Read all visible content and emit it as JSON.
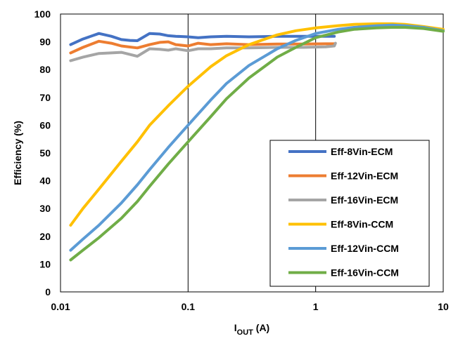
{
  "chart_data": {
    "type": "line",
    "xlabel": "I",
    "xlabel_sub": "OUT",
    "xlabel_suffix": " (A)",
    "ylabel": "Efficiency (%)",
    "xscale": "log",
    "xlim": [
      0.01,
      10
    ],
    "ylim": [
      0,
      100
    ],
    "x_ticks": [
      0.01,
      0.1,
      1,
      10
    ],
    "x_tick_labels": [
      "0.01",
      "0.1",
      "1",
      "10"
    ],
    "y_ticks": [
      0,
      10,
      20,
      30,
      40,
      50,
      60,
      70,
      80,
      90,
      100
    ],
    "y_tick_labels": [
      "0",
      "10",
      "20",
      "30",
      "40",
      "50",
      "60",
      "70",
      "80",
      "90",
      "100"
    ],
    "grid": "vertical major lines",
    "legend_position": "bottom-right",
    "series": [
      {
        "name": "Eff-8Vin-ECM",
        "color": "#4472C4",
        "points": [
          [
            0.012,
            89
          ],
          [
            0.015,
            91
          ],
          [
            0.02,
            93
          ],
          [
            0.025,
            92
          ],
          [
            0.03,
            90.8
          ],
          [
            0.035,
            90.5
          ],
          [
            0.04,
            90.4
          ],
          [
            0.05,
            93
          ],
          [
            0.06,
            92.8
          ],
          [
            0.07,
            92.2
          ],
          [
            0.08,
            92
          ],
          [
            0.1,
            91.8
          ],
          [
            0.12,
            91.5
          ],
          [
            0.15,
            91.8
          ],
          [
            0.2,
            92
          ],
          [
            0.3,
            91.8
          ],
          [
            0.5,
            92
          ],
          [
            0.8,
            92
          ],
          [
            1.2,
            92
          ],
          [
            1.4,
            92
          ]
        ]
      },
      {
        "name": "Eff-12Vin-ECM",
        "color": "#ED7D31",
        "points": [
          [
            0.012,
            86
          ],
          [
            0.015,
            88
          ],
          [
            0.02,
            90.2
          ],
          [
            0.025,
            89.5
          ],
          [
            0.03,
            88.5
          ],
          [
            0.04,
            87.8
          ],
          [
            0.05,
            89
          ],
          [
            0.06,
            89.8
          ],
          [
            0.07,
            90
          ],
          [
            0.08,
            89
          ],
          [
            0.1,
            88.5
          ],
          [
            0.12,
            89.5
          ],
          [
            0.15,
            89
          ],
          [
            0.2,
            89.3
          ],
          [
            0.3,
            89
          ],
          [
            0.5,
            89.2
          ],
          [
            0.8,
            89.2
          ],
          [
            1.2,
            89.3
          ],
          [
            1.4,
            89.3
          ]
        ]
      },
      {
        "name": "Eff-16Vin-ECM",
        "color": "#A5A5A5",
        "points": [
          [
            0.012,
            83.2
          ],
          [
            0.015,
            84.5
          ],
          [
            0.02,
            85.8
          ],
          [
            0.025,
            86
          ],
          [
            0.03,
            86.2
          ],
          [
            0.04,
            84.8
          ],
          [
            0.05,
            87.5
          ],
          [
            0.06,
            87.3
          ],
          [
            0.07,
            87
          ],
          [
            0.08,
            87.5
          ],
          [
            0.1,
            86.8
          ],
          [
            0.12,
            87.5
          ],
          [
            0.15,
            87.5
          ],
          [
            0.2,
            87.8
          ],
          [
            0.3,
            87.8
          ],
          [
            0.5,
            88
          ],
          [
            0.8,
            88
          ],
          [
            1.2,
            88.2
          ],
          [
            1.4,
            88.5
          ],
          [
            1.43,
            89.5
          ]
        ]
      },
      {
        "name": "Eff-8Vin-CCM",
        "color": "#FFC000",
        "points": [
          [
            0.012,
            24
          ],
          [
            0.015,
            30
          ],
          [
            0.02,
            37
          ],
          [
            0.03,
            47
          ],
          [
            0.04,
            54
          ],
          [
            0.05,
            60
          ],
          [
            0.07,
            67
          ],
          [
            0.1,
            74
          ],
          [
            0.15,
            81
          ],
          [
            0.2,
            85
          ],
          [
            0.3,
            89
          ],
          [
            0.5,
            92.5
          ],
          [
            0.7,
            94
          ],
          [
            1,
            95
          ],
          [
            1.5,
            95.8
          ],
          [
            2,
            96.3
          ],
          [
            3,
            96.5
          ],
          [
            4,
            96.5
          ],
          [
            5,
            96.3
          ],
          [
            7,
            95.5
          ],
          [
            10,
            94.5
          ]
        ]
      },
      {
        "name": "Eff-12Vin-CCM",
        "color": "#5B9BD5",
        "points": [
          [
            0.012,
            15
          ],
          [
            0.015,
            19
          ],
          [
            0.02,
            24
          ],
          [
            0.03,
            32
          ],
          [
            0.04,
            38.5
          ],
          [
            0.05,
            44
          ],
          [
            0.07,
            52
          ],
          [
            0.1,
            60
          ],
          [
            0.15,
            69
          ],
          [
            0.2,
            75
          ],
          [
            0.3,
            81.5
          ],
          [
            0.5,
            87.5
          ],
          [
            0.7,
            90.5
          ],
          [
            1,
            93
          ],
          [
            1.5,
            94.5
          ],
          [
            2,
            95.2
          ],
          [
            3,
            95.8
          ],
          [
            4,
            96
          ],
          [
            5,
            95.8
          ],
          [
            7,
            95.2
          ],
          [
            10,
            94
          ]
        ]
      },
      {
        "name": "Eff-16Vin-CCM",
        "color": "#70AD47",
        "points": [
          [
            0.012,
            11.5
          ],
          [
            0.015,
            15
          ],
          [
            0.02,
            19.5
          ],
          [
            0.03,
            26.5
          ],
          [
            0.04,
            32.5
          ],
          [
            0.05,
            38
          ],
          [
            0.07,
            46
          ],
          [
            0.1,
            54
          ],
          [
            0.15,
            63
          ],
          [
            0.2,
            69.5
          ],
          [
            0.3,
            77
          ],
          [
            0.5,
            84.5
          ],
          [
            0.7,
            88
          ],
          [
            1,
            91.5
          ],
          [
            1.5,
            93.5
          ],
          [
            2,
            94.5
          ],
          [
            3,
            95
          ],
          [
            4,
            95.2
          ],
          [
            5,
            95.2
          ],
          [
            7,
            94.8
          ],
          [
            10,
            93.8
          ]
        ]
      }
    ]
  }
}
